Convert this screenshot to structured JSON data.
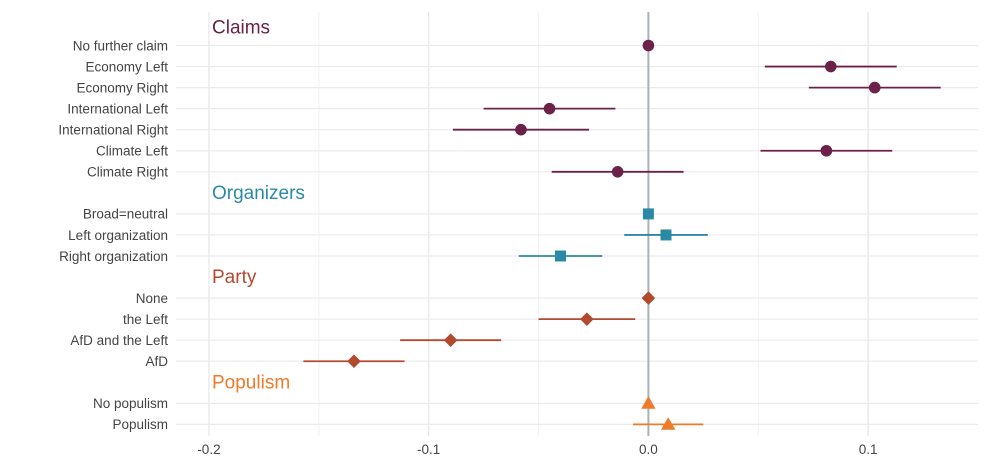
{
  "chart_data": {
    "type": "scatter",
    "title": "",
    "xlabel": "",
    "ylabel": "",
    "xlim": [
      -0.215,
      0.15
    ],
    "xticks": [
      -0.2,
      -0.1,
      0.0,
      0.1
    ],
    "xtick_labels": [
      "-0.2",
      "-0.1",
      "0.0",
      "0.1"
    ],
    "grid": true,
    "reference_line": 0,
    "groups": [
      {
        "title": "Claims",
        "color": "#6b2148",
        "marker": "circle",
        "items": [
          {
            "label": "No further claim",
            "estimate": 0.0,
            "ci": [
              0.0,
              0.0
            ]
          },
          {
            "label": "Economy Left",
            "estimate": 0.083,
            "ci": [
              0.053,
              0.113
            ]
          },
          {
            "label": "Economy Right",
            "estimate": 0.103,
            "ci": [
              0.073,
              0.133
            ]
          },
          {
            "label": "International Left",
            "estimate": -0.045,
            "ci": [
              -0.075,
              -0.015
            ]
          },
          {
            "label": "International Right",
            "estimate": -0.058,
            "ci": [
              -0.089,
              -0.027
            ]
          },
          {
            "label": "Climate Left",
            "estimate": 0.081,
            "ci": [
              0.051,
              0.111
            ]
          },
          {
            "label": "Climate Right",
            "estimate": -0.014,
            "ci": [
              -0.044,
              0.016
            ]
          }
        ]
      },
      {
        "title": "Organizers",
        "color": "#2a8aa6",
        "marker": "square",
        "items": [
          {
            "label": "Broad=neutral",
            "estimate": 0.0,
            "ci": [
              0.0,
              0.0
            ]
          },
          {
            "label": "Left organization",
            "estimate": 0.008,
            "ci": [
              -0.011,
              0.027
            ]
          },
          {
            "label": "Right organization",
            "estimate": -0.04,
            "ci": [
              -0.059,
              -0.021
            ]
          }
        ]
      },
      {
        "title": "Party",
        "color": "#b24a30",
        "marker": "diamond",
        "items": [
          {
            "label": "None",
            "estimate": 0.0,
            "ci": [
              0.0,
              0.0
            ]
          },
          {
            "label": "the Left",
            "estimate": -0.028,
            "ci": [
              -0.05,
              -0.006
            ]
          },
          {
            "label": "AfD and the Left",
            "estimate": -0.09,
            "ci": [
              -0.113,
              -0.067
            ]
          },
          {
            "label": "AfD",
            "estimate": -0.134,
            "ci": [
              -0.157,
              -0.111
            ]
          }
        ]
      },
      {
        "title": "Populism",
        "color": "#ef7a2a",
        "marker": "triangle",
        "items": [
          {
            "label": "No populism",
            "estimate": 0.0,
            "ci": [
              0.0,
              0.0
            ]
          },
          {
            "label": "Populism",
            "estimate": 0.009,
            "ci": [
              -0.007,
              0.025
            ]
          }
        ]
      }
    ]
  }
}
